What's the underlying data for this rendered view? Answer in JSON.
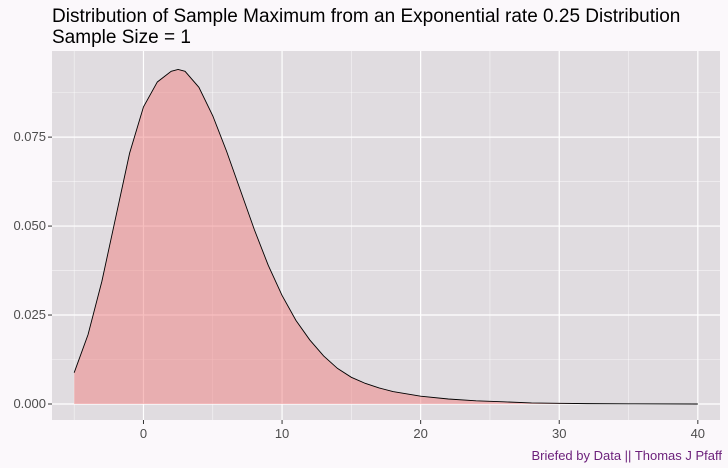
{
  "chart_data": {
    "type": "area",
    "title": "Distribution of Sample Maximum from an Exponential rate 0.25 Distribution",
    "subtitle": "Sample Size = 1",
    "caption": "Briefed by Data || Thomas J Pfaff",
    "xlabel": "",
    "ylabel": "",
    "xlim": [
      -6.6,
      41.6
    ],
    "ylim": [
      -0.0045,
      0.0992
    ],
    "x_ticks": [
      0,
      10,
      20,
      30,
      40
    ],
    "x_tick_labels": [
      "0",
      "10",
      "20",
      "30",
      "40"
    ],
    "y_ticks": [
      0.0,
      0.025,
      0.05,
      0.075
    ],
    "y_tick_labels": [
      "0.000",
      "0.025",
      "0.050",
      "0.075"
    ],
    "grid": true,
    "legend": "none",
    "series": [
      {
        "x": [
          -5,
          -4,
          -3,
          -2,
          -1,
          0,
          1,
          2,
          2.5,
          3,
          4,
          5,
          6,
          7,
          8,
          9,
          10,
          11,
          12,
          13,
          14,
          15,
          16,
          17,
          18,
          20,
          22,
          24,
          26,
          28,
          30,
          32,
          35,
          40
        ],
        "y": [
          0.0088,
          0.0195,
          0.0345,
          0.0525,
          0.0705,
          0.0835,
          0.0905,
          0.0935,
          0.094,
          0.0935,
          0.089,
          0.081,
          0.071,
          0.06,
          0.049,
          0.039,
          0.0305,
          0.0235,
          0.018,
          0.0135,
          0.01,
          0.0075,
          0.0058,
          0.0045,
          0.0035,
          0.0022,
          0.0014,
          0.0009,
          0.0006,
          0.0003,
          0.0002,
          0.0001,
          5e-05,
          0.0
        ]
      }
    ],
    "colors": {
      "panel_background": "#e0dce0",
      "grid": "#ffffff",
      "fill": "#f08080",
      "line": "#000000",
      "caption": "#6b1f7a"
    }
  }
}
